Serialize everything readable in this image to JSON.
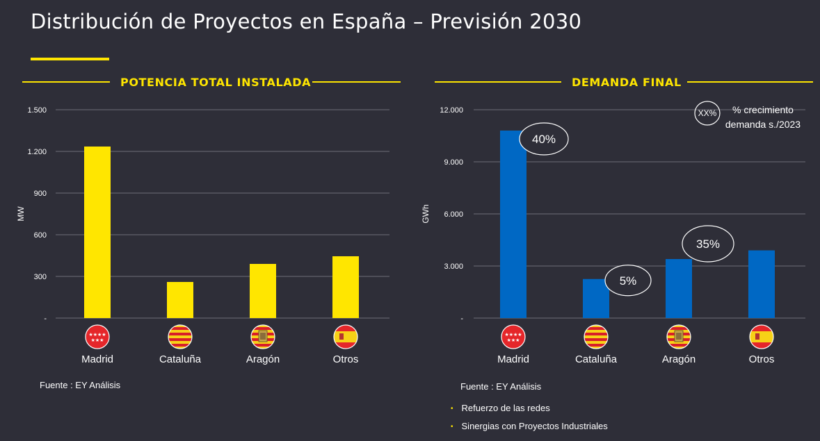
{
  "page": {
    "title": "Distribución de Proyectos en España – Previsión 2030",
    "accent_color": "#ffe600",
    "background_color": "#2e2e38"
  },
  "left_panel": {
    "section_title": "POTENCIA TOTAL INSTALADA",
    "source": "Fuente : EY Análisis"
  },
  "right_panel": {
    "section_title": "DEMANDA FINAL",
    "source": "Fuente : EY Análisis",
    "legend": {
      "symbol": "XX%",
      "text_line1": "% crecimiento",
      "text_line2": "demanda s./2023"
    },
    "bullets": [
      "Refuerzo de las redes",
      "Sinergias con Proyectos Industriales"
    ]
  },
  "chart_data": [
    {
      "type": "bar",
      "title": "POTENCIA TOTAL INSTALADA",
      "categories": [
        "Madrid",
        "Cataluña",
        "Aragón",
        "Otros"
      ],
      "category_icons": [
        "madrid-flag-icon",
        "cataluna-flag-icon",
        "aragon-flag-icon",
        "spain-flag-icon"
      ],
      "values": [
        1235,
        260,
        390,
        445
      ],
      "ylabel": "MW",
      "xlabel": "",
      "ylim": [
        0,
        1500
      ],
      "yticks": [
        0,
        300,
        600,
        900,
        1200,
        1500
      ],
      "ytick_labels": [
        "-",
        "300",
        "600",
        "900",
        "1.200",
        "1.500"
      ],
      "bar_color": "#ffe600",
      "grid": true
    },
    {
      "type": "bar",
      "title": "DEMANDA FINAL",
      "categories": [
        "Madrid",
        "Cataluña",
        "Aragón",
        "Otros"
      ],
      "category_icons": [
        "madrid-flag-icon",
        "cataluna-flag-icon",
        "aragon-flag-icon",
        "spain-flag-icon"
      ],
      "values": [
        10800,
        2250,
        3400,
        3900
      ],
      "ylabel": "GWh",
      "xlabel": "",
      "ylim": [
        0,
        12000
      ],
      "yticks": [
        0,
        3000,
        6000,
        9000,
        12000
      ],
      "ytick_labels": [
        "-",
        "3.000",
        "6.000",
        "9.000",
        "12.000"
      ],
      "bar_color": "#0068c4",
      "grid": true,
      "annotations": [
        {
          "category": "Madrid",
          "label": "40%"
        },
        {
          "category": "Cataluña",
          "label": "5%"
        },
        {
          "category": "Aragón",
          "label": "35%"
        }
      ]
    }
  ]
}
